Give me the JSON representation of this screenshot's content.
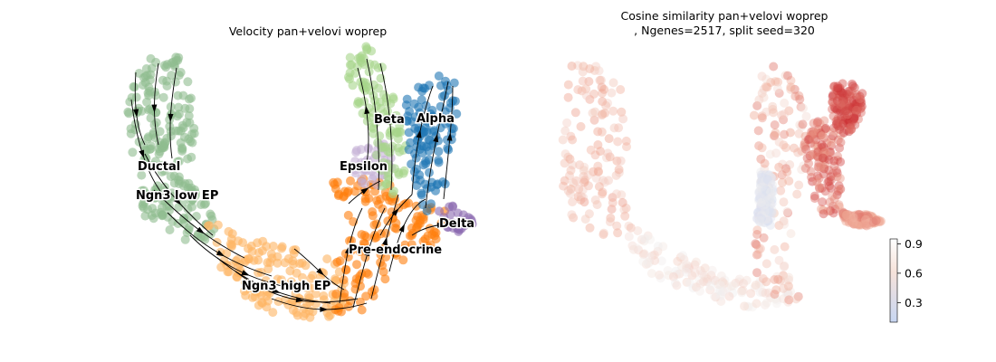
{
  "panels": {
    "left": {
      "title": "Velocity pan+velovi woprep"
    },
    "right": {
      "title_line1": "Cosine similarity pan+velovi woprep",
      "title_line2": ", Ngenes=2517, split seed=320"
    }
  },
  "chart_data": [
    {
      "type": "scatter",
      "subtype": "umap-embedding-with-velocity-streamlines",
      "title": "Velocity pan+velovi woprep",
      "axes_visible": false,
      "clusters": [
        {
          "name": "Ductal",
          "color": "#8fbc8f"
        },
        {
          "name": "Ngn3 low EP",
          "color": "#8fbc8f"
        },
        {
          "name": "Ngn3 high EP",
          "color": "#fdb462"
        },
        {
          "name": "Pre-endocrine",
          "color": "#ff7f0e"
        },
        {
          "name": "Beta",
          "color": "#a6d68a"
        },
        {
          "name": "Alpha",
          "color": "#1f77b4"
        },
        {
          "name": "Delta",
          "color": "#8c6bb1"
        },
        {
          "name": "Epsilon",
          "color": "#c5b0d5"
        }
      ]
    },
    {
      "type": "scatter",
      "subtype": "umap-embedding-colored-by-value",
      "title": "Cosine similarity pan+velovi woprep\n, Ngenes=2517, split seed=320",
      "axes_visible": false,
      "colormap": "coolwarm",
      "colorbar": {
        "ticks": [
          "0.9",
          "0.6",
          "0.3"
        ],
        "range": [
          0.1,
          0.95
        ],
        "low_color": "#c7d6f2",
        "mid_color": "#f6e2da",
        "high_color": "#ffffff"
      }
    }
  ]
}
